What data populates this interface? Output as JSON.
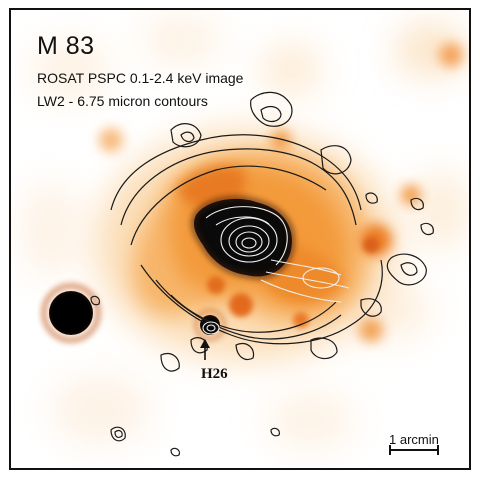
{
  "figure": {
    "title": "M 83",
    "caption_line1": "ROSAT PSPC 0.1-2.4 keV  image",
    "caption_line2": "LW2 - 6.75 micron contours",
    "source_label": "H26",
    "scale_label": "1 arcmin"
  },
  "colors": {
    "background": "#ffffff",
    "emission_low": "#fbe3c4",
    "emission_mid": "#f39a3a",
    "emission_high": "#d9661a",
    "core": "#0a0a0a",
    "contour_dark": "#1a1a1a",
    "contour_light": "#f1f1f1"
  }
}
